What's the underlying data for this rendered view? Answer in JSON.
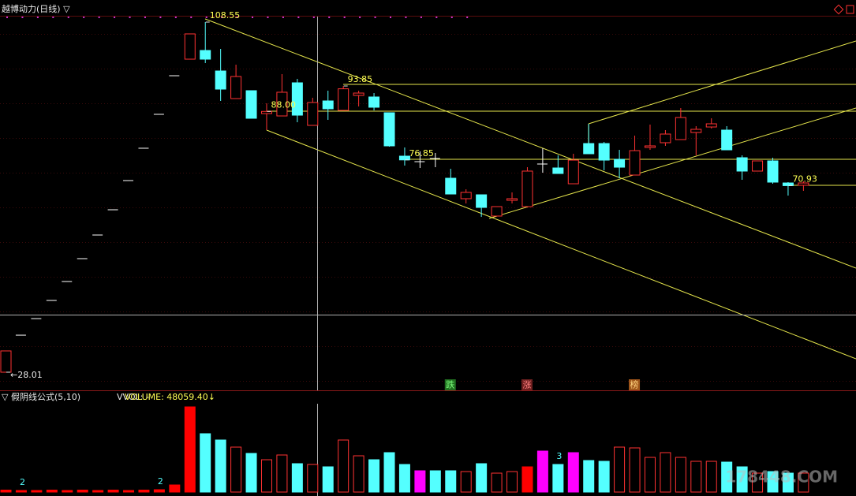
{
  "header": {
    "title": "越博动力(日线) ▽"
  },
  "chart_data": [
    {
      "type": "candlestick",
      "up_color": "#ff3232",
      "down_color": "#54ffff",
      "flat_color": "#ffffff",
      "ylim": [
        23.84,
        110
      ],
      "open": [
        28.01,
        36.53,
        40.34,
        44.52,
        48.87,
        54.13,
        59.57,
        65.38,
        72.09,
        79.53,
        87.33,
        96.21,
        100.02,
        102.02,
        97.3,
        90.95,
        92.77,
        87.5,
        86.96,
        94.58,
        84.79,
        90.41,
        88.23,
        91.68,
        91.32,
        87.69,
        77.71,
        76.44,
        77.17,
        72.63,
        67.92,
        68.82,
        63.93,
        67.55,
        66.1,
        75.9,
        74.99,
        71.36,
        80.61,
        80.61,
        76.99,
        73.36,
        79.71,
        80.8,
        81.52,
        83.15,
        84.42,
        83.7,
        77.35,
        74.27,
        76.62,
        71.54,
        71.0
      ],
      "high": [
        32.91,
        36.53,
        40.34,
        44.52,
        48.87,
        54.13,
        59.57,
        65.38,
        72.09,
        79.53,
        87.33,
        96.21,
        105.83,
        108.55,
        102.38,
        98.75,
        92.77,
        89.87,
        96.58,
        95.49,
        91.14,
        92.77,
        93.85,
        92.77,
        92.22,
        87.69,
        79.71,
        78.8,
        78.44,
        74.81,
        70.09,
        68.82,
        66.1,
        69.37,
        75.17,
        79.53,
        77.89,
        78.26,
        85.15,
        80.98,
        79.16,
        82.43,
        84.97,
        83.7,
        88.78,
        84.61,
        86.42,
        84.61,
        77.89,
        76.62,
        77.35,
        71.73,
        71.91
      ],
      "low": [
        28.01,
        36.53,
        40.34,
        44.52,
        48.87,
        54.13,
        59.57,
        65.38,
        72.09,
        79.53,
        87.33,
        96.21,
        100.02,
        99.12,
        90.41,
        90.95,
        86.42,
        83.7,
        86.96,
        85.51,
        84.79,
        86.06,
        88.23,
        89.14,
        88.23,
        79.89,
        75.54,
        74.99,
        75.17,
        69.0,
        66.83,
        63.74,
        63.93,
        66.83,
        66.1,
        73.9,
        73.72,
        71.36,
        78.26,
        74.45,
        72.63,
        73.36,
        79.16,
        80.07,
        81.52,
        77.89,
        84.06,
        79.16,
        72.27,
        74.27,
        71.36,
        68.64,
        69.73
      ],
      "close": [
        32.91,
        36.53,
        40.34,
        44.52,
        48.87,
        54.13,
        59.57,
        65.38,
        72.09,
        79.53,
        87.33,
        96.21,
        105.83,
        100.02,
        93.13,
        96.03,
        86.42,
        88.0,
        92.41,
        87.14,
        90.05,
        88.6,
        93.2,
        92.22,
        88.96,
        80.07,
        76.85,
        76.44,
        77.17,
        69.0,
        69.37,
        65.92,
        66.1,
        67.92,
        74.27,
        75.9,
        73.72,
        76.8,
        78.26,
        76.8,
        75.17,
        78.98,
        80.07,
        82.79,
        86.6,
        83.88,
        85.15,
        79.16,
        74.27,
        76.62,
        71.73,
        70.93,
        71.54
      ],
      "annotations": [
        {
          "index": 13,
          "value": 108.55,
          "label": "108.55"
        },
        {
          "index": 22,
          "value": 93.85,
          "label": "93.85"
        },
        {
          "index": 17,
          "value": 88,
          "label": "88.00"
        },
        {
          "index": 26,
          "value": 76.85,
          "label": "76.85"
        },
        {
          "index": 51,
          "value": 70.93,
          "label": "70.93"
        },
        {
          "index": 0,
          "value": 28.01,
          "label": "←28.01"
        }
      ],
      "events": [
        {
          "index": 29,
          "label": "跌",
          "color": "#1f6f1f",
          "text_color": "#7dff7d"
        },
        {
          "index": 34,
          "label": "涨",
          "color": "#6f1f1f",
          "text_color": "#ff8080"
        },
        {
          "index": 41,
          "label": "榜",
          "color": "#a0561a",
          "text_color": "#ffd27f"
        }
      ]
    },
    {
      "type": "bar",
      "title": "▽ 假阴线公式(5,10)",
      "vvol_label": "VVOL: -",
      "volume_readout": "VOLUME: 48059.40↓",
      "ylim": [
        0,
        224000
      ],
      "values": [
        5000,
        4000,
        4000,
        5000,
        4000,
        5000,
        4000,
        5000,
        4000,
        5000,
        6000,
        18000,
        216000,
        148000,
        132000,
        114000,
        98000,
        82000,
        94000,
        72000,
        70000,
        64000,
        132000,
        92000,
        82000,
        100000,
        70000,
        54000,
        54000,
        54000,
        52000,
        72000,
        48000,
        52000,
        64000,
        104000,
        70000,
        100000,
        80000,
        78000,
        114000,
        112000,
        88000,
        100000,
        88000,
        78000,
        78000,
        76000,
        64000,
        48000,
        52000,
        48000,
        48059.4
      ],
      "palette": {
        "red": "#ff3232",
        "cyan": "#54ffff",
        "magenta": "#ff00ff",
        "solid": "#ff0000"
      },
      "kinds": [
        "solid",
        "solid",
        "solid",
        "solid",
        "solid",
        "solid",
        "solid",
        "solid",
        "solid",
        "solid",
        "solid",
        "solid",
        "solid",
        "cyan",
        "cyan",
        "red",
        "cyan",
        "red",
        "red",
        "cyan",
        "red",
        "cyan",
        "red",
        "red",
        "cyan",
        "cyan",
        "cyan",
        "magenta",
        "cyan",
        "cyan",
        "red",
        "cyan",
        "red",
        "red",
        "solid",
        "magenta",
        "cyan",
        "magenta",
        "cyan",
        "cyan",
        "red",
        "red",
        "red",
        "red",
        "red",
        "red",
        "red",
        "cyan",
        "cyan",
        "red",
        "cyan",
        "cyan",
        "red"
      ],
      "markers": [
        {
          "index": 1,
          "label": "2"
        },
        {
          "index": 10,
          "label": "2"
        },
        {
          "index": 36,
          "label": "3"
        }
      ]
    }
  ],
  "watermark": "178448.COM"
}
